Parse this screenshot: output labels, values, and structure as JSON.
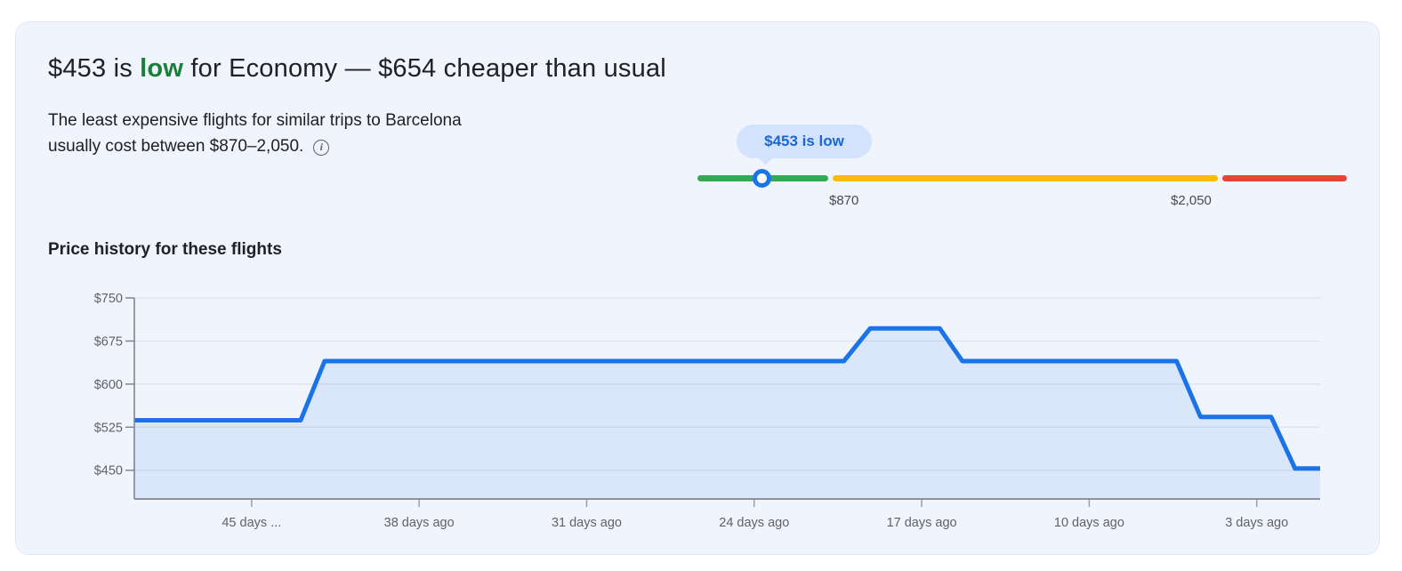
{
  "header": {
    "title_prefix": "$453 is ",
    "title_level": "low",
    "title_suffix": " for Economy — $654 cheaper than usual",
    "subtitle_line1": "The least expensive flights for similar trips to Barcelona",
    "subtitle_line2": "usually cost between $870–2,050.",
    "info_icon_glyph": "i"
  },
  "price_gauge": {
    "tooltip_label": "$453 is low",
    "current_price": "$453",
    "low_threshold_label": "$870",
    "high_threshold_label": "$2,050",
    "segments": [
      {
        "name": "low",
        "color": "#34a853"
      },
      {
        "name": "typical",
        "color": "#fbbc04"
      },
      {
        "name": "high",
        "color": "#ea4335"
      }
    ],
    "marker_color": "#1a73e8",
    "tooltip_bg": "#d3e3fd",
    "tooltip_text_color": "#1967d2"
  },
  "chart_section": {
    "heading": "Price history for these flights"
  },
  "chart_data": {
    "type": "area",
    "title": "Price history for these flights",
    "xlabel": "",
    "ylabel": "",
    "grid": true,
    "legend": false,
    "line_color": "#1a73e8",
    "fill_color": "rgba(26,115,232,0.10)",
    "axis_color": "#80868b",
    "grid_color": "#dce1ea",
    "tick_color": "#9aa0a6",
    "y_domain": [
      400,
      750
    ],
    "y_ticks": [
      {
        "label": "$750",
        "value": 750
      },
      {
        "label": "$675",
        "value": 675
      },
      {
        "label": "$600",
        "value": 600
      },
      {
        "label": "$525",
        "value": 525
      },
      {
        "label": "$450",
        "value": 450
      }
    ],
    "x_domain_days_ago": [
      49.9,
      0.35
    ],
    "x_ticks": [
      {
        "label": "45 days ...",
        "days_ago": 45
      },
      {
        "label": "38 days ago",
        "days_ago": 38
      },
      {
        "label": "31 days ago",
        "days_ago": 31
      },
      {
        "label": "24 days ago",
        "days_ago": 24
      },
      {
        "label": "17 days ago",
        "days_ago": 17
      },
      {
        "label": "10 days ago",
        "days_ago": 10
      },
      {
        "label": "3 days ago",
        "days_ago": 3
      }
    ],
    "series": [
      {
        "name": "price",
        "points": [
          {
            "days_ago": 49.9,
            "price": 537
          },
          {
            "days_ago": 42.95,
            "price": 537
          },
          {
            "days_ago": 41.95,
            "price": 640
          },
          {
            "days_ago": 20.25,
            "price": 640
          },
          {
            "days_ago": 19.15,
            "price": 697
          },
          {
            "days_ago": 16.25,
            "price": 697
          },
          {
            "days_ago": 15.3,
            "price": 640
          },
          {
            "days_ago": 6.35,
            "price": 640
          },
          {
            "days_ago": 5.35,
            "price": 543
          },
          {
            "days_ago": 2.4,
            "price": 543
          },
          {
            "days_ago": 1.4,
            "price": 453
          },
          {
            "days_ago": 0.35,
            "price": 453
          }
        ]
      }
    ]
  }
}
